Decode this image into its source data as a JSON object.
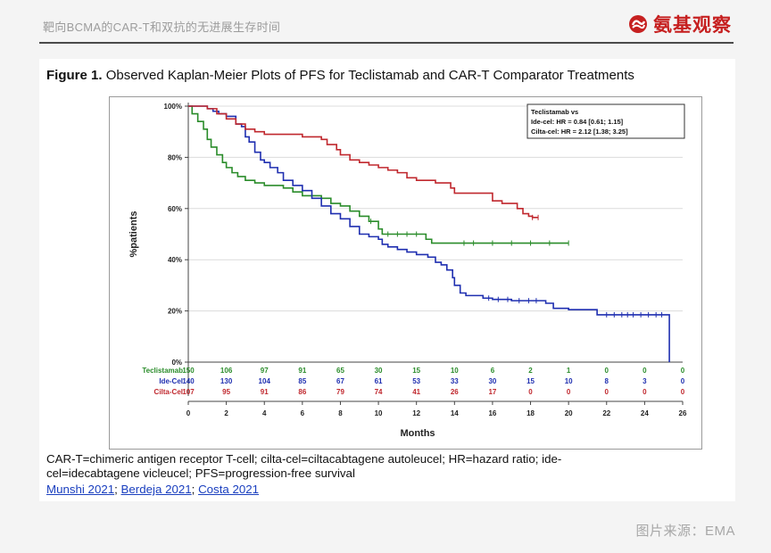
{
  "header": {
    "title": "靶向BCMA的CAR-T和双抗的无进展生存时间",
    "brand_name": "氨基观察"
  },
  "figure": {
    "label": "Figure 1.",
    "title": "Observed Kaplan-Meier Plots of PFS for Teclistamab and CAR-T Comparator Treatments",
    "footnote_line1": "CAR-T=chimeric antigen receptor T-cell; cilta-cel=ciltacabtagene autoleucel; HR=hazard ratio; ide-",
    "footnote_line2": "cel=idecabtagene vicleucel; PFS=progression-free survival",
    "refs": [
      "Munshi 2021",
      "Berdeja 2021",
      "Costa 2021"
    ],
    "ref_sep": ";"
  },
  "source": "图片来源：EMA",
  "colors": {
    "brand": "#c62020",
    "Teclistamab": "#2a8c2a",
    "Ide-Cel": "#1f2fb0",
    "Cilta-Cel": "#c0282e"
  },
  "chart_data": {
    "type": "line",
    "xlabel": "Months",
    "ylabel": "%patients",
    "xlim": [
      0,
      26
    ],
    "ylim": [
      0,
      100
    ],
    "x_ticks": [
      0,
      2,
      4,
      6,
      8,
      10,
      12,
      14,
      16,
      18,
      20,
      22,
      24,
      26
    ],
    "y_ticks": [
      0,
      20,
      40,
      60,
      80,
      100
    ],
    "y_tick_labels": [
      "0%",
      "20%",
      "40%",
      "60%",
      "80%",
      "100%"
    ],
    "grid": true,
    "legend": {
      "placement": "top-right",
      "lines": [
        "Teclistamab vs",
        "Ide-cel: HR = 0.84 [0.61; 1.15]",
        "Cilta-cel: HR = 2.12 [1.38; 3.25]"
      ]
    },
    "series": [
      {
        "name": "Teclistamab",
        "points": [
          [
            0,
            100
          ],
          [
            0.2,
            97
          ],
          [
            0.5,
            94
          ],
          [
            0.8,
            91
          ],
          [
            1,
            87
          ],
          [
            1.2,
            84
          ],
          [
            1.5,
            81
          ],
          [
            1.8,
            78
          ],
          [
            2,
            76
          ],
          [
            2.3,
            74
          ],
          [
            2.6,
            72.5
          ],
          [
            3,
            71
          ],
          [
            3.5,
            70
          ],
          [
            4,
            69
          ],
          [
            5,
            68
          ],
          [
            5.5,
            66.5
          ],
          [
            6,
            65
          ],
          [
            7,
            64
          ],
          [
            7.5,
            62
          ],
          [
            8,
            61
          ],
          [
            8.5,
            59
          ],
          [
            9,
            57
          ],
          [
            9.5,
            55
          ],
          [
            10,
            52
          ],
          [
            10.2,
            50
          ],
          [
            12,
            50
          ],
          [
            12.5,
            48
          ],
          [
            12.8,
            46.5
          ],
          [
            20,
            46.5
          ]
        ],
        "at_risk": [
          150,
          106,
          97,
          91,
          65,
          30,
          15,
          10,
          6,
          2,
          1,
          0,
          0,
          0
        ]
      },
      {
        "name": "Ide-Cel",
        "points": [
          [
            0,
            100
          ],
          [
            1,
            99
          ],
          [
            1.3,
            98
          ],
          [
            1.6,
            97
          ],
          [
            2,
            96
          ],
          [
            2.5,
            93
          ],
          [
            2.8,
            92
          ],
          [
            3,
            88
          ],
          [
            3.2,
            86
          ],
          [
            3.5,
            82
          ],
          [
            3.8,
            79
          ],
          [
            4,
            78
          ],
          [
            4.3,
            76
          ],
          [
            4.7,
            74
          ],
          [
            5,
            71
          ],
          [
            5.5,
            69
          ],
          [
            6,
            67
          ],
          [
            6.5,
            64
          ],
          [
            7,
            61
          ],
          [
            7.5,
            58
          ],
          [
            8,
            56
          ],
          [
            8.5,
            53
          ],
          [
            9,
            50
          ],
          [
            9.5,
            49
          ],
          [
            10,
            48
          ],
          [
            10.2,
            46
          ],
          [
            10.5,
            45
          ],
          [
            11,
            44
          ],
          [
            11.5,
            43
          ],
          [
            12,
            42
          ],
          [
            12.6,
            41
          ],
          [
            13,
            39
          ],
          [
            13.3,
            38
          ],
          [
            13.6,
            36
          ],
          [
            13.9,
            33
          ],
          [
            14,
            30
          ],
          [
            14.3,
            27
          ],
          [
            14.6,
            26
          ],
          [
            15.5,
            25
          ],
          [
            16,
            24.5
          ],
          [
            17,
            24
          ],
          [
            18,
            24
          ],
          [
            18.8,
            23
          ],
          [
            19.2,
            21
          ],
          [
            20,
            20.5
          ],
          [
            21,
            20.5
          ],
          [
            21.5,
            18.5
          ],
          [
            25.3,
            18.5
          ],
          [
            25.3,
            0
          ]
        ],
        "at_risk": [
          140,
          130,
          104,
          85,
          67,
          61,
          53,
          33,
          30,
          15,
          10,
          8,
          3,
          0
        ]
      },
      {
        "name": "Cilta-Cel",
        "points": [
          [
            0,
            100
          ],
          [
            1,
            99
          ],
          [
            1.5,
            97
          ],
          [
            2,
            95
          ],
          [
            2.5,
            93
          ],
          [
            3,
            91
          ],
          [
            3.5,
            90
          ],
          [
            4,
            89
          ],
          [
            5.5,
            89
          ],
          [
            6,
            88
          ],
          [
            7,
            87
          ],
          [
            7.3,
            85
          ],
          [
            7.8,
            83
          ],
          [
            8,
            81
          ],
          [
            8.5,
            79
          ],
          [
            9,
            78
          ],
          [
            9.5,
            77
          ],
          [
            10,
            76
          ],
          [
            10.5,
            75
          ],
          [
            11,
            74
          ],
          [
            11.5,
            72
          ],
          [
            12,
            71
          ],
          [
            13,
            70
          ],
          [
            13.8,
            68
          ],
          [
            14,
            66
          ],
          [
            15.5,
            66
          ],
          [
            16,
            63
          ],
          [
            16.5,
            62
          ],
          [
            17,
            62
          ],
          [
            17.3,
            60
          ],
          [
            17.6,
            58
          ],
          [
            17.9,
            57
          ],
          [
            18.1,
            56.5
          ],
          [
            18.4,
            56.5
          ]
        ],
        "at_risk": [
          107,
          95,
          91,
          86,
          79,
          74,
          41,
          26,
          17,
          0,
          0,
          0,
          0,
          0
        ]
      }
    ],
    "censor_ticks": {
      "Teclistamab": [
        9.6,
        10.5,
        11,
        11.5,
        12,
        14.5,
        15,
        16,
        17,
        18,
        19,
        20
      ],
      "Ide-Cel": [
        15.8,
        16.3,
        16.8,
        17.4,
        17.9,
        18.3,
        22,
        22.4,
        22.8,
        23.1,
        23.4,
        23.8,
        24.2,
        24.6,
        24.9
      ],
      "Cilta-Cel": [
        18.1,
        18.4
      ]
    }
  }
}
